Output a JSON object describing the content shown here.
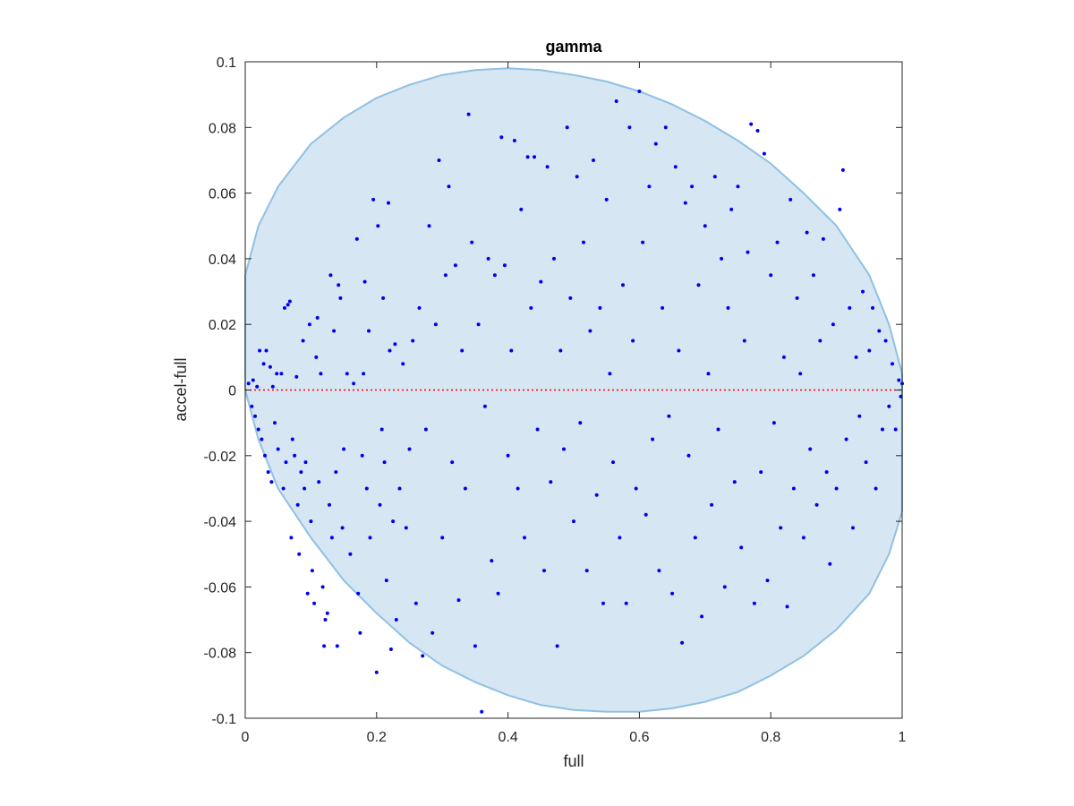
{
  "chart_data": {
    "type": "scatter",
    "title": "gamma",
    "xlabel": "full",
    "ylabel": "accel-full",
    "xlim": [
      0,
      1
    ],
    "ylim": [
      -0.1,
      0.1
    ],
    "xticks": [
      0,
      0.2,
      0.4,
      0.6,
      0.8,
      1
    ],
    "xtick_labels": [
      "0",
      "0.2",
      "0.4",
      "0.6",
      "0.8",
      "1"
    ],
    "yticks": [
      -0.1,
      -0.08,
      -0.06,
      -0.04,
      -0.02,
      0,
      0.02,
      0.04,
      0.06,
      0.08,
      0.1
    ],
    "ytick_labels": [
      "-0.1",
      "-0.08",
      "-0.06",
      "-0.04",
      "-0.02",
      "0",
      "0.02",
      "0.04",
      "0.06",
      "0.08",
      "0.1"
    ],
    "grid": false,
    "box": true,
    "colors": {
      "points": "#0000ee",
      "region_fill": "#d6e6f3",
      "region_edge": "#8fc1e3",
      "reference_line": "#ff0000",
      "axis": "#262626"
    },
    "reference_line": {
      "y": 0,
      "style": "dotted"
    },
    "shaded_region": {
      "upper": [
        [
          0,
          0.035
        ],
        [
          0.02,
          0.05
        ],
        [
          0.05,
          0.062
        ],
        [
          0.1,
          0.075
        ],
        [
          0.15,
          0.083
        ],
        [
          0.2,
          0.089
        ],
        [
          0.25,
          0.093
        ],
        [
          0.3,
          0.096
        ],
        [
          0.35,
          0.0975
        ],
        [
          0.4,
          0.098
        ],
        [
          0.45,
          0.0975
        ],
        [
          0.5,
          0.096
        ],
        [
          0.55,
          0.094
        ],
        [
          0.6,
          0.091
        ],
        [
          0.65,
          0.087
        ],
        [
          0.7,
          0.082
        ],
        [
          0.75,
          0.076
        ],
        [
          0.8,
          0.069
        ],
        [
          0.85,
          0.06
        ],
        [
          0.9,
          0.05
        ],
        [
          0.95,
          0.035
        ],
        [
          0.98,
          0.02
        ],
        [
          1,
          0.005
        ]
      ],
      "lower": [
        [
          0,
          0
        ],
        [
          0.02,
          -0.015
        ],
        [
          0.05,
          -0.03
        ],
        [
          0.1,
          -0.045
        ],
        [
          0.15,
          -0.058
        ],
        [
          0.2,
          -0.068
        ],
        [
          0.25,
          -0.077
        ],
        [
          0.3,
          -0.084
        ],
        [
          0.35,
          -0.089
        ],
        [
          0.4,
          -0.093
        ],
        [
          0.45,
          -0.096
        ],
        [
          0.5,
          -0.0975
        ],
        [
          0.55,
          -0.098
        ],
        [
          0.6,
          -0.098
        ],
        [
          0.65,
          -0.097
        ],
        [
          0.7,
          -0.095
        ],
        [
          0.75,
          -0.092
        ],
        [
          0.8,
          -0.087
        ],
        [
          0.85,
          -0.081
        ],
        [
          0.9,
          -0.073
        ],
        [
          0.95,
          -0.062
        ],
        [
          0.98,
          -0.05
        ],
        [
          1,
          -0.037
        ]
      ]
    },
    "series": [
      {
        "points": [
          [
            0.005,
            0.002
          ],
          [
            0.01,
            -0.005
          ],
          [
            0.012,
            0.003
          ],
          [
            0.015,
            -0.008
          ],
          [
            0.018,
            0.001
          ],
          [
            0.02,
            -0.012
          ],
          [
            0.022,
            0.012
          ],
          [
            0.025,
            -0.015
          ],
          [
            0.028,
            0.008
          ],
          [
            0.03,
            -0.02
          ],
          [
            0.032,
            0.012
          ],
          [
            0.035,
            -0.025
          ],
          [
            0.038,
            0.007
          ],
          [
            0.04,
            -0.028
          ],
          [
            0.042,
            0.001
          ],
          [
            0.045,
            -0.01
          ],
          [
            0.048,
            0.005
          ],
          [
            0.05,
            -0.018
          ],
          [
            0.055,
            0.005
          ],
          [
            0.058,
            -0.03
          ],
          [
            0.06,
            0.025
          ],
          [
            0.062,
            -0.022
          ],
          [
            0.065,
            0.026
          ],
          [
            0.068,
            0.027
          ],
          [
            0.07,
            -0.045
          ],
          [
            0.072,
            -0.015
          ],
          [
            0.075,
            -0.02
          ],
          [
            0.078,
            0.004
          ],
          [
            0.08,
            -0.035
          ],
          [
            0.082,
            -0.05
          ],
          [
            0.085,
            -0.025
          ],
          [
            0.088,
            0.015
          ],
          [
            0.09,
            -0.03
          ],
          [
            0.092,
            -0.022
          ],
          [
            0.095,
            -0.062
          ],
          [
            0.098,
            0.02
          ],
          [
            0.1,
            -0.04
          ],
          [
            0.102,
            -0.055
          ],
          [
            0.105,
            -0.065
          ],
          [
            0.108,
            0.01
          ],
          [
            0.11,
            0.022
          ],
          [
            0.112,
            -0.028
          ],
          [
            0.115,
            0.005
          ],
          [
            0.118,
            -0.06
          ],
          [
            0.12,
            -0.078
          ],
          [
            0.122,
            -0.07
          ],
          [
            0.125,
            -0.068
          ],
          [
            0.128,
            -0.035
          ],
          [
            0.13,
            0.035
          ],
          [
            0.132,
            -0.045
          ],
          [
            0.135,
            0.018
          ],
          [
            0.138,
            -0.025
          ],
          [
            0.14,
            -0.078
          ],
          [
            0.142,
            0.032
          ],
          [
            0.145,
            0.028
          ],
          [
            0.148,
            -0.042
          ],
          [
            0.15,
            -0.018
          ],
          [
            0.155,
            0.005
          ],
          [
            0.16,
            -0.05
          ],
          [
            0.165,
            0.002
          ],
          [
            0.17,
            0.046
          ],
          [
            0.172,
            -0.062
          ],
          [
            0.175,
            -0.074
          ],
          [
            0.178,
            -0.02
          ],
          [
            0.18,
            0.005
          ],
          [
            0.182,
            0.033
          ],
          [
            0.185,
            -0.03
          ],
          [
            0.188,
            0.018
          ],
          [
            0.19,
            -0.045
          ],
          [
            0.195,
            0.058
          ],
          [
            0.2,
            -0.086
          ],
          [
            0.202,
            0.05
          ],
          [
            0.205,
            -0.035
          ],
          [
            0.208,
            -0.012
          ],
          [
            0.21,
            0.028
          ],
          [
            0.212,
            -0.022
          ],
          [
            0.215,
            -0.058
          ],
          [
            0.218,
            0.057
          ],
          [
            0.22,
            0.012
          ],
          [
            0.222,
            -0.079
          ],
          [
            0.225,
            -0.04
          ],
          [
            0.228,
            0.014
          ],
          [
            0.23,
            -0.07
          ],
          [
            0.235,
            -0.03
          ],
          [
            0.24,
            0.008
          ],
          [
            0.245,
            -0.042
          ],
          [
            0.25,
            -0.018
          ],
          [
            0.255,
            0.015
          ],
          [
            0.26,
            -0.065
          ],
          [
            0.265,
            0.025
          ],
          [
            0.27,
            -0.081
          ],
          [
            0.275,
            -0.012
          ],
          [
            0.28,
            0.05
          ],
          [
            0.285,
            -0.074
          ],
          [
            0.29,
            0.02
          ],
          [
            0.295,
            0.07
          ],
          [
            0.3,
            -0.045
          ],
          [
            0.305,
            0.035
          ],
          [
            0.31,
            0.062
          ],
          [
            0.315,
            -0.022
          ],
          [
            0.32,
            0.038
          ],
          [
            0.325,
            -0.064
          ],
          [
            0.33,
            0.012
          ],
          [
            0.335,
            -0.03
          ],
          [
            0.34,
            0.084
          ],
          [
            0.345,
            0.045
          ],
          [
            0.35,
            -0.078
          ],
          [
            0.355,
            0.02
          ],
          [
            0.36,
            -0.098
          ],
          [
            0.365,
            -0.005
          ],
          [
            0.37,
            0.04
          ],
          [
            0.375,
            -0.052
          ],
          [
            0.38,
            0.035
          ],
          [
            0.385,
            -0.062
          ],
          [
            0.39,
            0.077
          ],
          [
            0.395,
            0.038
          ],
          [
            0.4,
            -0.02
          ],
          [
            0.405,
            0.012
          ],
          [
            0.41,
            0.076
          ],
          [
            0.415,
            -0.03
          ],
          [
            0.42,
            0.055
          ],
          [
            0.425,
            -0.045
          ],
          [
            0.43,
            0.071
          ],
          [
            0.435,
            0.025
          ],
          [
            0.44,
            0.071
          ],
          [
            0.445,
            -0.012
          ],
          [
            0.45,
            0.033
          ],
          [
            0.455,
            -0.055
          ],
          [
            0.46,
            0.068
          ],
          [
            0.465,
            -0.028
          ],
          [
            0.47,
            0.04
          ],
          [
            0.475,
            -0.078
          ],
          [
            0.48,
            0.012
          ],
          [
            0.485,
            -0.018
          ],
          [
            0.49,
            0.08
          ],
          [
            0.495,
            0.028
          ],
          [
            0.5,
            -0.04
          ],
          [
            0.505,
            0.065
          ],
          [
            0.51,
            -0.01
          ],
          [
            0.515,
            0.045
          ],
          [
            0.52,
            -0.055
          ],
          [
            0.525,
            0.018
          ],
          [
            0.53,
            0.07
          ],
          [
            0.535,
            -0.032
          ],
          [
            0.54,
            0.025
          ],
          [
            0.545,
            -0.065
          ],
          [
            0.55,
            0.058
          ],
          [
            0.555,
            0.005
          ],
          [
            0.56,
            -0.022
          ],
          [
            0.565,
            0.088
          ],
          [
            0.57,
            -0.045
          ],
          [
            0.575,
            0.032
          ],
          [
            0.58,
            -0.065
          ],
          [
            0.585,
            0.08
          ],
          [
            0.59,
            0.015
          ],
          [
            0.595,
            -0.03
          ],
          [
            0.6,
            0.091
          ],
          [
            0.605,
            0.045
          ],
          [
            0.61,
            -0.038
          ],
          [
            0.615,
            0.062
          ],
          [
            0.62,
            -0.015
          ],
          [
            0.625,
            0.075
          ],
          [
            0.63,
            -0.055
          ],
          [
            0.635,
            0.025
          ],
          [
            0.64,
            0.08
          ],
          [
            0.645,
            -0.008
          ],
          [
            0.65,
            -0.062
          ],
          [
            0.655,
            0.068
          ],
          [
            0.66,
            0.012
          ],
          [
            0.665,
            -0.077
          ],
          [
            0.67,
            0.057
          ],
          [
            0.675,
            -0.02
          ],
          [
            0.68,
            0.062
          ],
          [
            0.685,
            -0.045
          ],
          [
            0.69,
            0.032
          ],
          [
            0.695,
            -0.069
          ],
          [
            0.7,
            0.05
          ],
          [
            0.705,
            0.005
          ],
          [
            0.71,
            -0.035
          ],
          [
            0.715,
            0.065
          ],
          [
            0.72,
            -0.012
          ],
          [
            0.725,
            0.04
          ],
          [
            0.73,
            -0.06
          ],
          [
            0.735,
            0.025
          ],
          [
            0.74,
            0.055
          ],
          [
            0.745,
            -0.028
          ],
          [
            0.75,
            0.062
          ],
          [
            0.755,
            -0.048
          ],
          [
            0.76,
            0.015
          ],
          [
            0.765,
            0.042
          ],
          [
            0.77,
            0.081
          ],
          [
            0.775,
            -0.065
          ],
          [
            0.78,
            0.079
          ],
          [
            0.785,
            -0.025
          ],
          [
            0.79,
            0.072
          ],
          [
            0.795,
            -0.058
          ],
          [
            0.8,
            0.035
          ],
          [
            0.805,
            -0.01
          ],
          [
            0.81,
            0.045
          ],
          [
            0.815,
            -0.042
          ],
          [
            0.82,
            0.01
          ],
          [
            0.825,
            -0.066
          ],
          [
            0.83,
            0.058
          ],
          [
            0.835,
            -0.03
          ],
          [
            0.84,
            0.028
          ],
          [
            0.845,
            0.005
          ],
          [
            0.85,
            -0.045
          ],
          [
            0.855,
            0.048
          ],
          [
            0.86,
            -0.018
          ],
          [
            0.865,
            0.035
          ],
          [
            0.87,
            -0.035
          ],
          [
            0.875,
            0.015
          ],
          [
            0.88,
            0.046
          ],
          [
            0.885,
            -0.025
          ],
          [
            0.89,
            -0.053
          ],
          [
            0.895,
            0.02
          ],
          [
            0.9,
            -0.03
          ],
          [
            0.905,
            0.055
          ],
          [
            0.91,
            0.067
          ],
          [
            0.915,
            -0.015
          ],
          [
            0.92,
            0.025
          ],
          [
            0.925,
            -0.042
          ],
          [
            0.93,
            0.01
          ],
          [
            0.935,
            -0.008
          ],
          [
            0.94,
            0.03
          ],
          [
            0.945,
            -0.022
          ],
          [
            0.95,
            0.012
          ],
          [
            0.955,
            0.025
          ],
          [
            0.96,
            -0.03
          ],
          [
            0.965,
            0.018
          ],
          [
            0.97,
            -0.012
          ],
          [
            0.975,
            0.015
          ],
          [
            0.98,
            -0.005
          ],
          [
            0.985,
            0.008
          ],
          [
            0.99,
            -0.012
          ],
          [
            0.995,
            0.003
          ],
          [
            0.998,
            -0.002
          ],
          [
            1,
            0.002
          ]
        ]
      }
    ]
  }
}
